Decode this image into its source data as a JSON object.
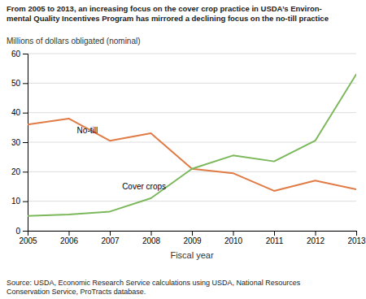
{
  "chart_data": {
    "type": "line",
    "title": "From 2005 to 2013, an increasing focus on the cover crop practice in USDA’s Environ-\nmental Quality Incentives Program has mirrored a declining focus on the no-till practice",
    "x_label": "Fiscal year",
    "y_label": "Millions of dollars obligated (nominal)",
    "source": "Source: USDA, Economic Research Service calculations using USDA, National Resources\nConservation Service, ProTracts database.",
    "x": [
      2005,
      2006,
      2007,
      2008,
      2009,
      2010,
      2011,
      2012,
      2013
    ],
    "series": [
      {
        "name": "No-till",
        "color": "#E07B45",
        "values": [
          36,
          38,
          30.5,
          33,
          21,
          19.5,
          13.5,
          17,
          14
        ],
        "label_x": 2006.2,
        "label_y": 35.5
      },
      {
        "name": "Cover crops",
        "color": "#7BB85C",
        "values": [
          5,
          5.5,
          6.5,
          11,
          21,
          25.5,
          23.5,
          30.5,
          53
        ],
        "label_x": 2007.3,
        "label_y": 13.5
      }
    ],
    "xlim": [
      2005,
      2013
    ],
    "xticks": [
      2005,
      2006,
      2007,
      2008,
      2009,
      2010,
      2011,
      2012,
      2013
    ],
    "ylim": [
      0,
      60
    ],
    "yticks": [
      0,
      10,
      20,
      30,
      40,
      50,
      60
    ],
    "grid": true
  }
}
